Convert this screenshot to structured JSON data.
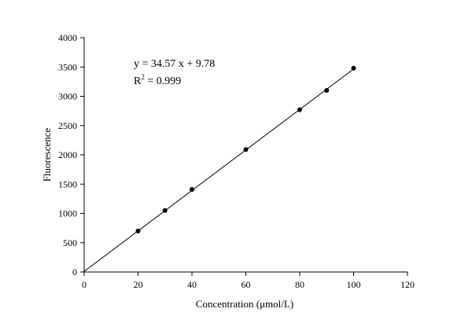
{
  "chart_data": {
    "type": "scatter",
    "xlabel": "Concentration (μmol/L)",
    "ylabel": "Fluorescence",
    "xlim": [
      0,
      120
    ],
    "ylim": [
      0,
      4000
    ],
    "xticks": [
      0,
      20,
      40,
      60,
      80,
      100,
      120
    ],
    "yticks": [
      0,
      500,
      1000,
      1500,
      2000,
      2500,
      3000,
      3500,
      4000
    ],
    "grid": false,
    "series": [
      {
        "x": [
          20,
          30,
          40,
          60,
          80,
          90,
          100
        ],
        "y": [
          700,
          1050,
          1410,
          2090,
          2770,
          3100,
          3480
        ]
      }
    ],
    "fit_line": {
      "slope": 34.57,
      "intercept": 9.78,
      "x_range": [
        0,
        100
      ]
    },
    "annotations": {
      "equation": "y = 34.57 x + 9.78",
      "r2_prefix": "R",
      "r2_sup": "2",
      "r2_suffix": " = 0.999"
    }
  }
}
